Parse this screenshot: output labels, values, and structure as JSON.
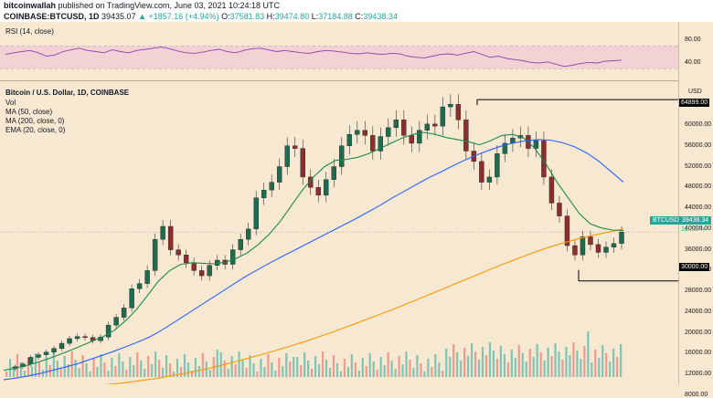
{
  "header": {
    "author": "bitcoinwallah",
    "published": "published on TradingView.com, June 03, 2021 10:24:18 UTC",
    "symbol": "COINBASE:BTCUSD, 1D",
    "price": "39435.07",
    "change": "▲ +1857.16 (+4.94%)",
    "ohlc_o_label": "O:",
    "ohlc_o": "37581.83",
    "ohlc_h_label": "H:",
    "ohlc_h": "39474.80",
    "ohlc_l_label": "L:",
    "ohlc_l": "37184.88",
    "ohlc_c_label": "C:",
    "ohlc_c": "39438.34"
  },
  "rsi": {
    "label": "RSI (14, close)",
    "ticks": [
      "80.00",
      "40.00"
    ],
    "values": [
      55,
      58,
      60,
      62,
      58,
      52,
      54,
      60,
      63,
      66,
      62,
      60,
      58,
      63,
      60,
      58,
      62,
      64,
      66,
      68,
      65,
      61,
      58,
      57,
      59,
      62,
      64,
      60,
      58,
      62,
      65,
      66,
      63,
      60,
      62,
      60,
      58,
      57,
      60,
      62,
      61,
      59,
      57,
      56,
      58,
      56,
      55,
      57,
      56,
      52,
      50,
      49,
      52,
      55,
      56,
      54,
      57,
      60,
      55,
      50,
      52,
      48,
      46,
      44,
      41,
      40,
      42,
      38,
      34,
      36,
      39,
      41,
      40,
      43,
      44,
      45
    ]
  },
  "main": {
    "title": "Bitcoin / U.S. Dollar, 1D, COINBASE",
    "legend": [
      "Vol",
      "MA (50, close)",
      "MA (200, close, 0)",
      "EMA (20, close, 0)"
    ],
    "currency": "USD",
    "axis_ticks": [
      "60000.00",
      "56000.00",
      "52000.00",
      "48000.00",
      "44000.00",
      "40000.00",
      "36000.00",
      "32000.00",
      "28000.00",
      "24000.00",
      "20000.00",
      "16000.00",
      "12000.00",
      "8000.00"
    ],
    "marker_high": "64899.00",
    "marker_low": "30000.00",
    "btc_label": "BTCUSD",
    "btc_price": "39438.34",
    "btc_time": "13:35:44"
  },
  "chart_data": {
    "type": "line",
    "title": "Bitcoin / U.S. Dollar, 1D, COINBASE",
    "ylabel": "USD",
    "ylim": [
      8000,
      66000
    ],
    "series": [
      {
        "name": "BTCUSD",
        "values": [
          13100,
          13500,
          14000,
          15300,
          15800,
          16300,
          17000,
          18000,
          18900,
          19300,
          19100,
          18500,
          19200,
          21500,
          23000,
          24800,
          28500,
          29500,
          32000,
          38000,
          40500,
          36000,
          35000,
          33500,
          32000,
          31000,
          33000,
          34000,
          33200,
          36000,
          38000,
          40000,
          46000,
          47500,
          49000,
          52000,
          56000,
          55500,
          50000,
          48000,
          46500,
          49500,
          52000,
          56000,
          58200,
          59000,
          58000,
          55000,
          57800,
          59500,
          61000,
          58000,
          56500,
          59000,
          60200,
          59800,
          63500,
          64000,
          61000,
          55000,
          53000,
          49000,
          50000,
          54500,
          56500,
          57500,
          58000,
          55500,
          57000,
          50000,
          45000,
          42500,
          36800,
          35000,
          38500,
          37000,
          35500,
          36500,
          37200,
          39400
        ],
        "color": "#26a69a"
      },
      {
        "name": "MA (50, close)",
        "values": [
          11000,
          11300,
          11700,
          12200,
          12800,
          13400,
          14000,
          14800,
          15600,
          16400,
          17300,
          18200,
          19200,
          20500,
          22000,
          23500,
          25000,
          26500,
          28000,
          29500,
          31000,
          32300,
          33600,
          34800,
          36000,
          37200,
          38400,
          39600,
          40800,
          42000,
          43300,
          44600,
          46000,
          47300,
          48600,
          49900,
          51000,
          52200,
          53300,
          54300,
          55200,
          56000,
          56600,
          57000,
          57200,
          57100,
          56600,
          55800,
          54600,
          53000,
          51000,
          49000
        ],
        "color": "#2962ff"
      },
      {
        "name": "MA (200, close, 0)",
        "values": [
          8800,
          8900,
          9000,
          9100,
          9300,
          9500,
          9800,
          10100,
          10400,
          10800,
          11200,
          11700,
          12200,
          12800,
          13500,
          14200,
          15000,
          15800,
          16600,
          17500,
          18400,
          19400,
          20400,
          21500,
          22600,
          23700,
          24800,
          26000,
          27200,
          28400,
          29600,
          30800,
          32000,
          33200,
          34300,
          35400,
          36400,
          37300,
          38100,
          38800,
          39400,
          40000
        ],
        "color": "#ff9800"
      },
      {
        "name": "EMA (20, close, 0)",
        "values": [
          12800,
          13200,
          13700,
          14300,
          15000,
          15800,
          16600,
          17500,
          18400,
          19300,
          20500,
          22300,
          24500,
          27200,
          30000,
          32000,
          33200,
          33500,
          33400,
          33300,
          33600,
          34300,
          35400,
          37000,
          39000,
          41500,
          44500,
          47500,
          50000,
          52000,
          53200,
          53400,
          53800,
          54500,
          55500,
          56500,
          57500,
          58200,
          58600,
          58200,
          57600,
          57200,
          56800,
          56200,
          57000,
          58000,
          58200,
          57500,
          55500,
          52500,
          49000,
          46000,
          43000,
          41000,
          40200,
          39800,
          39700
        ],
        "color": "#1b8a4c"
      }
    ],
    "volume_ylim": [
      8000,
      24000
    ]
  }
}
